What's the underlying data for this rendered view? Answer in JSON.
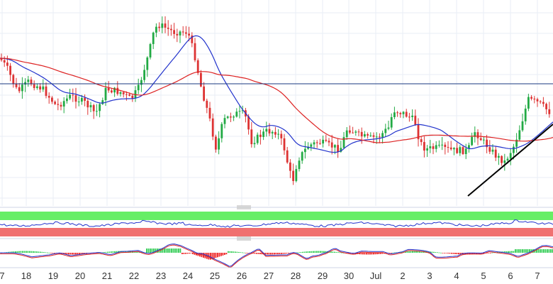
{
  "chart_data": [
    {
      "type": "candlestick",
      "panel": "price",
      "title": "",
      "xlabel": "",
      "ylabel": "",
      "grid": true,
      "legend": "none",
      "x_axis_ticks": [
        "7",
        "18",
        "19",
        "20",
        "21",
        "22",
        "23",
        "24",
        "25",
        "26",
        "27",
        "28",
        "29",
        "30",
        "Jul",
        "2",
        "3",
        "4",
        "5",
        "6",
        "7"
      ],
      "price_units_note_hidden": false,
      "series": [
        {
          "kind": "candles",
          "bull_color": "#22aa44",
          "bear_color": "#dd3333"
        },
        {
          "kind": "moving-average",
          "color": "#2233cc"
        },
        {
          "kind": "moving-average",
          "color": "#dd2222"
        }
      ],
      "annotations": [
        {
          "kind": "horizontal-line",
          "color": "#1a3a80"
        },
        {
          "kind": "trendline",
          "color": "#000000"
        }
      ]
    },
    {
      "type": "line",
      "panel": "oscillator",
      "zones": {
        "upper": "#66ee66",
        "lower": "#f07070"
      },
      "line_color": "#2233cc"
    },
    {
      "type": "histogram",
      "panel": "macd",
      "positive_color": "#33cc55",
      "negative_color": "#ee2222",
      "line_colors": [
        "#2233cc",
        "#dd2222"
      ]
    }
  ],
  "colors": {
    "grid": "#e8edf6",
    "axis": "#cfd6e4",
    "divider": "#999999"
  }
}
